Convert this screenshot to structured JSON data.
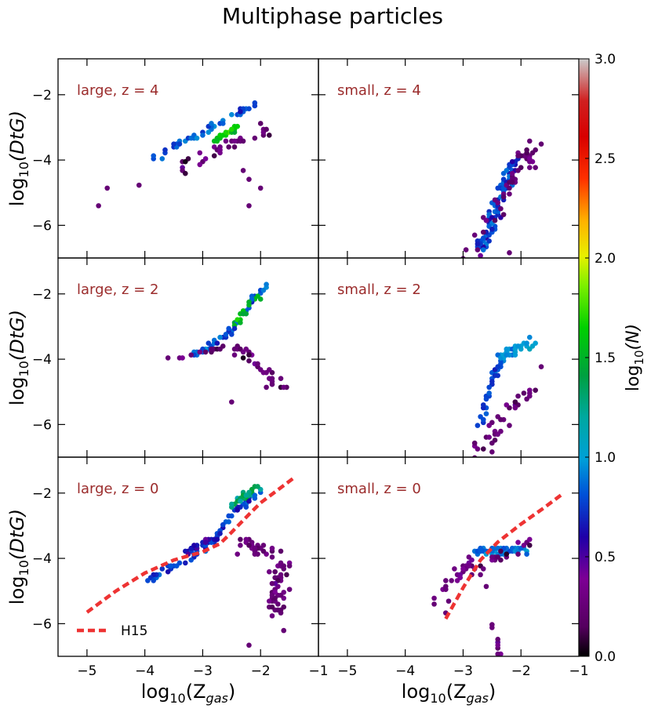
{
  "chart_data": {
    "type": "heatmap",
    "title": "Multiphase particles",
    "colorbar": {
      "label_main": "log",
      "label_sub": "10",
      "label_arg": "(N)",
      "range": [
        0,
        3
      ],
      "ticks": [
        "0.0",
        "0.5",
        "1.0",
        "1.5",
        "2.0",
        "2.5",
        "3.0"
      ],
      "tick_values": [
        0,
        0.5,
        1,
        1.5,
        2,
        2.5,
        3
      ]
    },
    "axes": {
      "xlim": [
        -5.5,
        -1
      ],
      "ylim": [
        -7,
        -0.9
      ],
      "xticks": [
        -5,
        -4,
        -3,
        -2,
        -1
      ],
      "xtick_labels": [
        "−5",
        "−4",
        "−3",
        "−2",
        "−1"
      ],
      "yticks": [
        -6,
        -4,
        -2
      ],
      "ytick_labels": [
        "−6",
        "−4",
        "−2"
      ],
      "xlabel_main": "log",
      "xlabel_sub": "10",
      "xlabel_arg": "(Z",
      "xlabel_argsub": "gas",
      "xlabel_close": ")",
      "ylabel_main": "log",
      "ylabel_sub": "10",
      "ylabel_arg": "(DtG)"
    },
    "legend": {
      "label": "H15",
      "location": "lower-left",
      "color": "#ee3333"
    },
    "label_color": "#9b2c2c",
    "panels": [
      {
        "id": "large-z4",
        "label": "large, z = 4",
        "clusters": [
          {
            "pts": [
              [
                -3.9,
                -4.0
              ],
              [
                -2.1,
                -2.3
              ]
            ],
            "w": 0.1,
            "n": 55,
            "lvl": 0.8
          },
          {
            "pts": [
              [
                -2.8,
                -3.4
              ],
              [
                -2.3,
                -2.9
              ]
            ],
            "w": 0.06,
            "n": 25,
            "lvl": 1.6
          },
          {
            "pts": [
              [
                -3.4,
                -4.3
              ],
              [
                -1.9,
                -3.0
              ]
            ],
            "w": 0.2,
            "n": 40,
            "lvl": 0.25
          }
        ],
        "points": [
          [
            -4.8,
            -5.4
          ],
          [
            -4.65,
            -4.9
          ],
          [
            -4.1,
            -4.8
          ],
          [
            -2.2,
            -5.4
          ],
          [
            -2.0,
            -4.9
          ],
          [
            -2.3,
            -4.3
          ],
          [
            -2.2,
            -4.6
          ]
        ]
      },
      {
        "id": "small-z4",
        "label": "small, z = 4",
        "clusters": [
          {
            "pts": [
              [
                -2.7,
                -6.8
              ],
              [
                -2.1,
                -3.9
              ]
            ],
            "w": 0.16,
            "n": 90,
            "lvl": 0.75
          },
          {
            "pts": [
              [
                -2.9,
                -6.9
              ],
              [
                -1.8,
                -3.6
              ]
            ],
            "w": 0.28,
            "n": 60,
            "lvl": 0.25
          }
        ],
        "points": [
          [
            -1.85,
            -3.4
          ],
          [
            -1.75,
            -4.2
          ],
          [
            -2.2,
            -6.8
          ],
          [
            -3.0,
            -7.0
          ]
        ]
      },
      {
        "id": "large-z2",
        "label": "large, z = 2",
        "clusters": [
          {
            "pts": [
              [
                -3.2,
                -3.9
              ],
              [
                -2.6,
                -3.3
              ],
              [
                -2.2,
                -2.4
              ],
              [
                -1.9,
                -1.7
              ]
            ],
            "w": 0.09,
            "n": 60,
            "lvl": 0.8
          },
          {
            "pts": [
              [
                -2.5,
                -3.0
              ],
              [
                -2.0,
                -2.0
              ]
            ],
            "w": 0.1,
            "n": 20,
            "lvl": 1.5
          },
          {
            "pts": [
              [
                -2.4,
                -3.6
              ],
              [
                -1.7,
                -4.8
              ]
            ],
            "w": 0.18,
            "n": 35,
            "lvl": 0.25
          },
          {
            "pts": [
              [
                -3.5,
                -4.0
              ],
              [
                -2.6,
                -3.6
              ]
            ],
            "w": 0.1,
            "n": 20,
            "lvl": 0.25
          }
        ],
        "points": [
          [
            -3.6,
            -4.0
          ],
          [
            -2.5,
            -5.3
          ],
          [
            -1.9,
            -4.9
          ],
          [
            -1.8,
            -4.8
          ]
        ]
      },
      {
        "id": "small-z2",
        "label": "small, z = 2",
        "clusters": [
          {
            "pts": [
              [
                -2.8,
                -6.7
              ],
              [
                -2.5,
                -4.6
              ],
              [
                -2.3,
                -4.0
              ]
            ],
            "w": 0.09,
            "n": 50,
            "lvl": 0.75
          },
          {
            "pts": [
              [
                -2.4,
                -3.9
              ],
              [
                -1.8,
                -3.5
              ]
            ],
            "w": 0.14,
            "n": 45,
            "lvl": 0.95
          },
          {
            "pts": [
              [
                -2.8,
                -6.9
              ],
              [
                -1.8,
                -4.8
              ]
            ],
            "w": 0.22,
            "n": 35,
            "lvl": 0.25
          }
        ],
        "points": [
          [
            -1.9,
            -5.2
          ],
          [
            -1.65,
            -4.2
          ],
          [
            -2.8,
            -7.0
          ],
          [
            -2.5,
            -6.8
          ]
        ]
      },
      {
        "id": "large-z0",
        "label": "large, z = 0",
        "clusters": [
          {
            "pts": [
              [
                -4.0,
                -4.7
              ],
              [
                -3.0,
                -3.8
              ],
              [
                -2.5,
                -2.7
              ],
              [
                -2.0,
                -1.9
              ]
            ],
            "w": 0.1,
            "n": 70,
            "lvl": 0.75
          },
          {
            "pts": [
              [
                -2.5,
                -2.4
              ],
              [
                -2.0,
                -1.8
              ]
            ],
            "w": 0.1,
            "n": 25,
            "lvl": 1.3
          },
          {
            "pts": [
              [
                -2.4,
                -3.5
              ],
              [
                -1.6,
                -4.0
              ],
              [
                -1.8,
                -5.8
              ]
            ],
            "w": 0.25,
            "n": 80,
            "lvl": 0.25
          },
          {
            "pts": [
              [
                -3.3,
                -3.9
              ],
              [
                -2.7,
                -3.3
              ]
            ],
            "w": 0.16,
            "n": 35,
            "lvl": 0.6
          }
        ],
        "points": [
          [
            -2.2,
            -6.7
          ],
          [
            -1.6,
            -6.2
          ],
          [
            -1.5,
            -4.2
          ],
          [
            -1.8,
            -4.8
          ]
        ],
        "curve": [
          [
            -5.0,
            -5.65
          ],
          [
            -4.5,
            -5.0
          ],
          [
            -4.0,
            -4.45
          ],
          [
            -3.5,
            -4.05
          ],
          [
            -3.0,
            -3.8
          ],
          [
            -2.7,
            -3.55
          ],
          [
            -2.5,
            -3.2
          ],
          [
            -2.2,
            -2.65
          ],
          [
            -2.0,
            -2.3
          ],
          [
            -1.7,
            -1.9
          ],
          [
            -1.4,
            -1.5
          ]
        ]
      },
      {
        "id": "small-z0",
        "label": "small, z = 0",
        "clusters": [
          {
            "pts": [
              [
                -2.8,
                -3.8
              ],
              [
                -1.9,
                -3.7
              ]
            ],
            "w": 0.14,
            "n": 60,
            "lvl": 0.85
          },
          {
            "pts": [
              [
                -3.5,
                -5.2
              ],
              [
                -2.8,
                -4.0
              ]
            ],
            "w": 0.12,
            "n": 25,
            "lvl": 0.3
          },
          {
            "pts": [
              [
                -2.9,
                -4.5
              ],
              [
                -1.8,
                -3.4
              ]
            ],
            "w": 0.2,
            "n": 30,
            "lvl": 0.25
          },
          {
            "pts": [
              [
                -2.5,
                -6.0
              ],
              [
                -2.35,
                -7.0
              ]
            ],
            "w": 0.05,
            "n": 12,
            "lvl": 0.25
          }
        ],
        "points": [
          [
            -3.5,
            -5.4
          ],
          [
            -3.25,
            -5.3
          ],
          [
            -3.3,
            -5.7
          ],
          [
            -2.6,
            -4.9
          ]
        ],
        "curve": [
          [
            -3.3,
            -5.85
          ],
          [
            -3.0,
            -4.9
          ],
          [
            -2.7,
            -4.05
          ],
          [
            -2.4,
            -3.5
          ],
          [
            -2.0,
            -2.95
          ],
          [
            -1.6,
            -2.45
          ],
          [
            -1.3,
            -2.05
          ]
        ]
      }
    ]
  }
}
